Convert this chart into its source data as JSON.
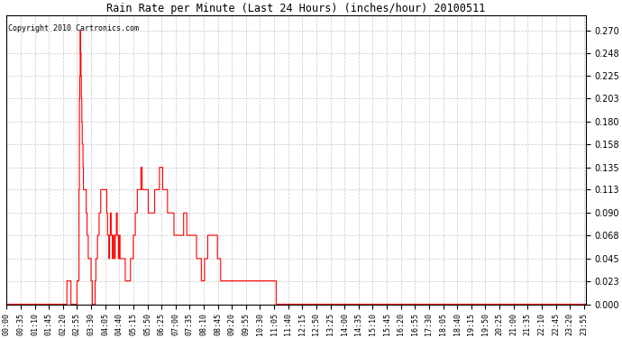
{
  "title": "Rain Rate per Minute (Last 24 Hours) (inches/hour) 20100511",
  "copyright": "Copyright 2010 Cartronics.com",
  "line_color": "#ff0000",
  "bg_color": "#ffffff",
  "grid_color": "#c8c8c8",
  "yticks": [
    0.0,
    0.023,
    0.045,
    0.068,
    0.09,
    0.113,
    0.135,
    0.158,
    0.18,
    0.203,
    0.225,
    0.248,
    0.27
  ],
  "ylim": [
    0.0,
    0.285
  ],
  "total_minutes": 1440,
  "x_tick_labels": [
    "00:00",
    "00:35",
    "01:10",
    "01:45",
    "02:20",
    "02:55",
    "03:30",
    "04:05",
    "04:40",
    "05:15",
    "05:50",
    "06:25",
    "07:00",
    "07:35",
    "08:10",
    "08:45",
    "09:20",
    "09:55",
    "10:30",
    "11:05",
    "11:40",
    "12:15",
    "12:50",
    "13:25",
    "14:00",
    "14:35",
    "15:10",
    "15:45",
    "16:20",
    "16:55",
    "17:30",
    "18:05",
    "18:40",
    "19:15",
    "19:50",
    "20:25",
    "21:00",
    "21:35",
    "22:10",
    "22:45",
    "23:20",
    "23:55"
  ]
}
